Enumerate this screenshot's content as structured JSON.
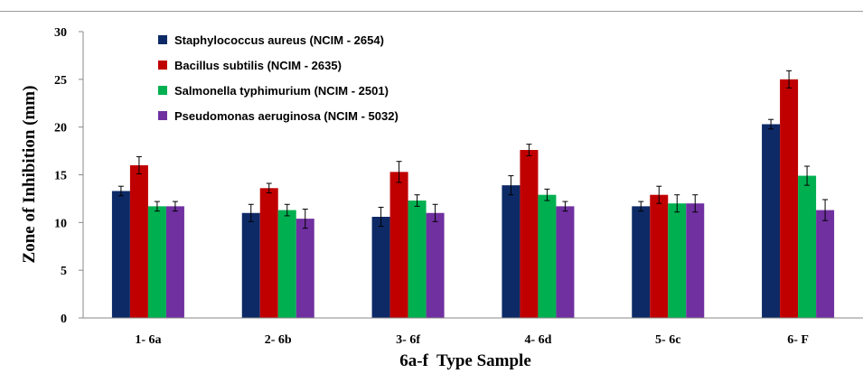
{
  "chart_data": {
    "type": "bar",
    "xlabel": "6a-f  Type Sample",
    "ylabel": "Zone of Inhibition (mm)",
    "ylim": [
      0,
      30
    ],
    "yticks": [
      0,
      5,
      10,
      15,
      20,
      25,
      30
    ],
    "grid": false,
    "legend_position": "top-left",
    "categories": [
      "1- 6a",
      "2- 6b",
      "3- 6f",
      "4- 6d",
      "5- 6c",
      "6- F"
    ],
    "series": [
      {
        "name": "Staphylococcus aureus (NCIM - 2654)",
        "color": "#0d2a66",
        "values": [
          13.3,
          11.0,
          10.6,
          13.9,
          11.7,
          20.3
        ],
        "errors": [
          0.5,
          0.9,
          1.0,
          1.0,
          0.5,
          0.5
        ]
      },
      {
        "name": "Bacillus subtilis (NCIM - 2635)",
        "color": "#c00000",
        "values": [
          16.0,
          13.6,
          15.3,
          17.6,
          12.9,
          25.0
        ],
        "errors": [
          0.9,
          0.5,
          1.1,
          0.6,
          0.9,
          0.9
        ]
      },
      {
        "name": "Salmonella typhimurium (NCIM - 2501)",
        "color": "#00b050",
        "values": [
          11.7,
          11.3,
          12.3,
          12.9,
          12.0,
          14.9
        ],
        "errors": [
          0.5,
          0.6,
          0.6,
          0.6,
          0.9,
          1.0
        ]
      },
      {
        "name": "Pseudomonas aeruginosa (NCIM - 5032)",
        "color": "#7030a0",
        "values": [
          11.7,
          10.4,
          11.0,
          11.7,
          12.0,
          11.3
        ],
        "errors": [
          0.5,
          1.0,
          0.9,
          0.5,
          0.9,
          1.1
        ]
      }
    ]
  }
}
